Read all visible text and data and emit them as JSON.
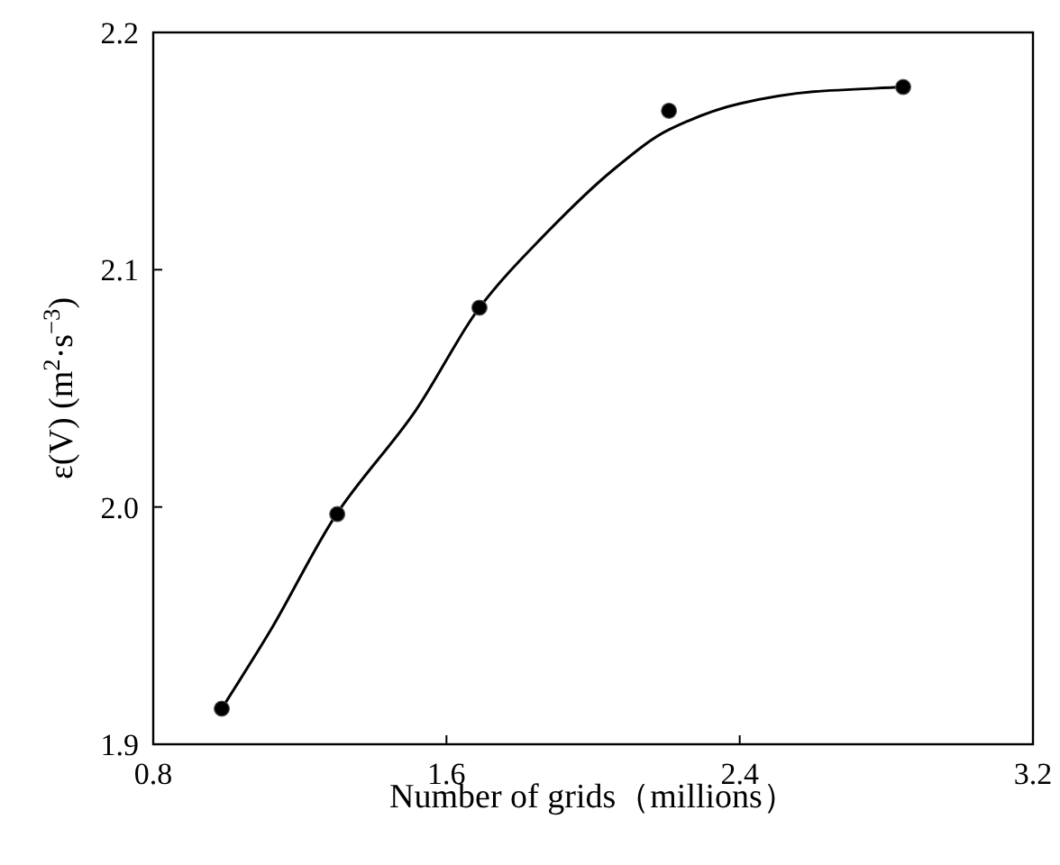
{
  "chart_data": {
    "type": "scatter",
    "xlabel": "Number of grids（millions）",
    "ylabel": "ε(V) (m$^{2}$·s$^{−3}$)",
    "xlim": [
      0.8,
      3.2
    ],
    "ylim": [
      1.9,
      2.2
    ],
    "xticks": [
      0.8,
      1.6,
      2.4,
      3.2
    ],
    "yticks": [
      1.9,
      {
        "value": 2.0,
        "label": "2.0"
      },
      2.1,
      2.2
    ],
    "marker": "circle",
    "series": [
      {
        "type": "line",
        "color": "#000000",
        "marker": "none",
        "line_style": "solid",
        "x": [
          0.987,
          1.12,
          1.3,
          1.513,
          1.69,
          1.857,
          2.054,
          2.207,
          2.4,
          2.6,
          2.846
        ],
        "values": [
          1.915,
          1.948,
          1.997,
          2.04,
          2.084,
          2.113,
          2.142,
          2.159,
          2.17,
          2.175,
          2.177
        ]
      },
      {
        "color": "#000000",
        "x": [
          0.987,
          1.302,
          1.69,
          2.207,
          2.846
        ],
        "values": [
          1.915,
          1.997,
          2.084,
          2.167,
          2.177
        ]
      }
    ]
  }
}
